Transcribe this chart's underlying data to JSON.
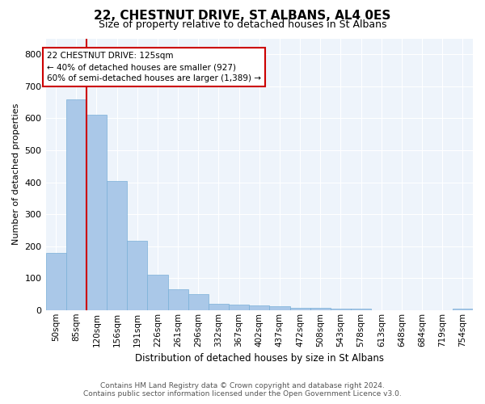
{
  "title": "22, CHESTNUT DRIVE, ST ALBANS, AL4 0ES",
  "subtitle": "Size of property relative to detached houses in St Albans",
  "xlabel": "Distribution of detached houses by size in St Albans",
  "ylabel": "Number of detached properties",
  "categories": [
    "50sqm",
    "85sqm",
    "120sqm",
    "156sqm",
    "191sqm",
    "226sqm",
    "261sqm",
    "296sqm",
    "332sqm",
    "367sqm",
    "402sqm",
    "437sqm",
    "472sqm",
    "508sqm",
    "543sqm",
    "578sqm",
    "613sqm",
    "648sqm",
    "684sqm",
    "719sqm",
    "754sqm"
  ],
  "values": [
    178,
    660,
    610,
    403,
    217,
    110,
    65,
    50,
    20,
    17,
    15,
    13,
    7,
    7,
    5,
    5,
    0,
    0,
    0,
    0,
    5
  ],
  "bar_color": "#aac8e8",
  "bar_edge_color": "#7ab0d8",
  "annotation_line1": "22 CHESTNUT DRIVE: 125sqm",
  "annotation_line2": "← 40% of detached houses are smaller (927)",
  "annotation_line3": "60% of semi-detached houses are larger (1,389) →",
  "annotation_box_color": "#ffffff",
  "annotation_box_edge_color": "#cc0000",
  "red_line_x": 1.5,
  "ylim": [
    0,
    850
  ],
  "yticks": [
    0,
    100,
    200,
    300,
    400,
    500,
    600,
    700,
    800
  ],
  "background_color": "#eef4fb",
  "grid_color": "#ffffff",
  "title_fontsize": 11,
  "subtitle_fontsize": 9,
  "ylabel_fontsize": 8,
  "xlabel_fontsize": 8.5,
  "tick_fontsize": 7.5,
  "annotation_fontsize": 7.5,
  "footer_line1": "Contains HM Land Registry data © Crown copyright and database right 2024.",
  "footer_line2": "Contains public sector information licensed under the Open Government Licence v3.0."
}
